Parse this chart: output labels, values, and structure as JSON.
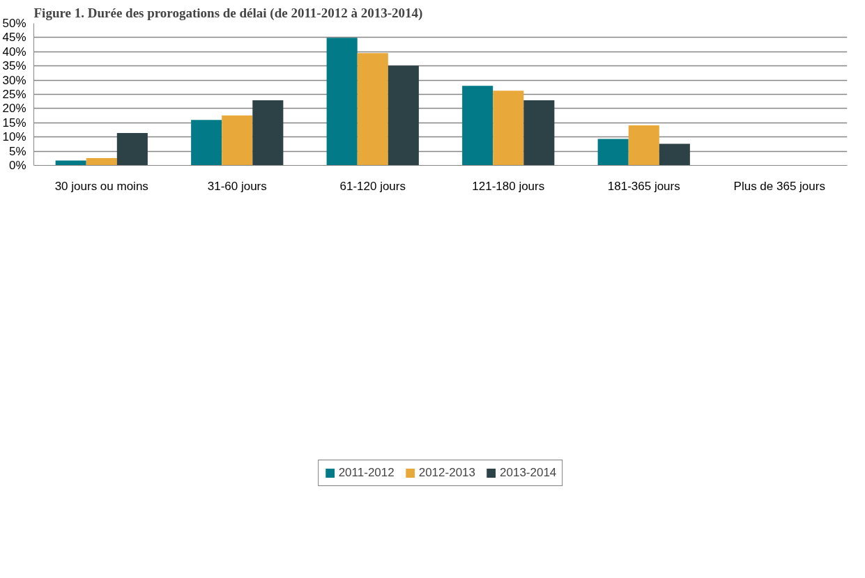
{
  "chart_data": {
    "type": "bar",
    "title": "Figure 1. Durée des prorogations de délai (de 2011-2012 à 2013-2014)",
    "categories": [
      "30 jours ou moins",
      "31-60 jours",
      "61-120 jours",
      "121-180 jours",
      "181-365 jours",
      "Plus de 365 jours"
    ],
    "series": [
      {
        "name": "2011-2012",
        "color": "#027a87",
        "values": [
          1.7,
          16.0,
          44.9,
          28.0,
          9.3,
          0
        ]
      },
      {
        "name": "2012-2013",
        "color": "#e9a83a",
        "values": [
          2.6,
          17.6,
          39.5,
          26.3,
          14.1,
          0
        ]
      },
      {
        "name": "2013-2014",
        "color": "#2d4246",
        "values": [
          11.4,
          22.9,
          35.1,
          22.9,
          7.6,
          0
        ]
      }
    ],
    "ylim": [
      0,
      50
    ],
    "yticks": [
      {
        "value": 0,
        "label": "0%"
      },
      {
        "value": 5,
        "label": "5%"
      },
      {
        "value": 10,
        "label": "10%"
      },
      {
        "value": 15,
        "label": "15%"
      },
      {
        "value": 20,
        "label": "20%"
      },
      {
        "value": 25,
        "label": "25%"
      },
      {
        "value": 30,
        "label": "30%"
      },
      {
        "value": 35,
        "label": "35%"
      },
      {
        "value": 40,
        "label": "40%"
      },
      {
        "value": 45,
        "label": "45%"
      },
      {
        "value": 50,
        "label": "50%"
      }
    ],
    "grid": "y",
    "legend": "bottom"
  }
}
